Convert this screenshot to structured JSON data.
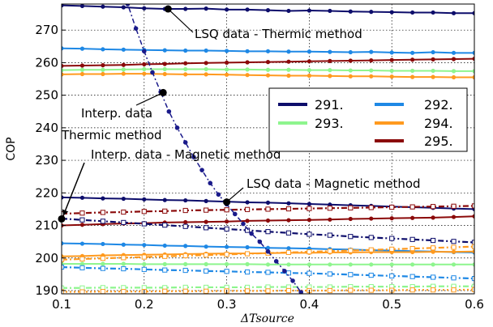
{
  "chart_data": {
    "type": "line",
    "title": "",
    "xlabel": "ΔTsource",
    "ylabel": "COP",
    "xlim": [
      0.1,
      0.6
    ],
    "ylim": [
      189,
      278
    ],
    "xticks": [
      "0.1",
      "0.2",
      "0.3",
      "0.4",
      "0.5",
      "0.6"
    ],
    "yticks": [
      "190",
      "200",
      "210",
      "220",
      "230",
      "240",
      "250",
      "260",
      "270"
    ],
    "grid": true,
    "legend": {
      "placement": "center-right",
      "columns": 2,
      "entries": [
        {
          "label": "291.",
          "color": "#0d0d6b"
        },
        {
          "label": "292.",
          "color": "#1e88e5"
        },
        {
          "label": "293.",
          "color": "#8ef58e"
        },
        {
          "label": "294.",
          "color": "#ff9a1f"
        },
        {
          "label": "295.",
          "color": "#8b0a0a"
        }
      ]
    },
    "colors": {
      "291": "#0d0d6b",
      "292": "#1e88e5",
      "293": "#8ef58e",
      "294": "#ff9a1f",
      "295": "#8b0a0a",
      "interp": "#1a1a8a"
    },
    "series": [
      {
        "temp": "291",
        "method": "thermic-lsq",
        "x": [
          0.1,
          0.125,
          0.15,
          0.175,
          0.2,
          0.225,
          0.25,
          0.275,
          0.3,
          0.325,
          0.35,
          0.375,
          0.4,
          0.425,
          0.45,
          0.475,
          0.5,
          0.525,
          0.55,
          0.575,
          0.6
        ],
        "y": [
          277.6,
          277.4,
          277.2,
          277.0,
          276.7,
          276.5,
          276.5,
          276.6,
          276.3,
          276.3,
          276.1,
          275.9,
          276.0,
          275.9,
          275.7,
          275.6,
          275.5,
          275.4,
          275.4,
          275.2,
          275.2
        ]
      },
      {
        "temp": "292",
        "method": "thermic-lsq",
        "x": [
          0.1,
          0.125,
          0.15,
          0.175,
          0.2,
          0.225,
          0.25,
          0.275,
          0.3,
          0.325,
          0.35,
          0.375,
          0.4,
          0.425,
          0.45,
          0.475,
          0.5,
          0.525,
          0.55,
          0.575,
          0.6
        ],
        "y": [
          264.4,
          264.3,
          264.1,
          264.0,
          263.9,
          263.8,
          263.7,
          263.7,
          263.6,
          263.5,
          263.5,
          263.4,
          263.4,
          263.3,
          263.2,
          263.3,
          263.1,
          263.0,
          263.2,
          263.0,
          263.0
        ]
      },
      {
        "temp": "295",
        "method": "thermic-lsq",
        "x": [
          0.1,
          0.125,
          0.15,
          0.175,
          0.2,
          0.225,
          0.25,
          0.275,
          0.3,
          0.325,
          0.35,
          0.375,
          0.4,
          0.425,
          0.45,
          0.475,
          0.5,
          0.525,
          0.55,
          0.575,
          0.6
        ],
        "y": [
          259.0,
          259.1,
          259.2,
          259.3,
          259.5,
          259.6,
          259.8,
          259.9,
          260.0,
          260.1,
          260.2,
          260.3,
          260.4,
          260.5,
          260.6,
          260.7,
          260.8,
          260.9,
          261.0,
          261.1,
          261.2
        ]
      },
      {
        "temp": "293",
        "method": "thermic-lsq",
        "x": [
          0.1,
          0.125,
          0.15,
          0.175,
          0.2,
          0.225,
          0.25,
          0.275,
          0.3,
          0.325,
          0.35,
          0.375,
          0.4,
          0.425,
          0.45,
          0.475,
          0.5,
          0.525,
          0.55,
          0.575,
          0.6
        ],
        "y": [
          257.7,
          257.8,
          257.8,
          257.9,
          258.0,
          258.0,
          258.0,
          258.0,
          257.9,
          257.9,
          257.8,
          257.8,
          257.7,
          257.7,
          257.6,
          257.6,
          257.5,
          257.5,
          257.5,
          257.4,
          257.4
        ]
      },
      {
        "temp": "294",
        "method": "thermic-lsq",
        "x": [
          0.1,
          0.125,
          0.15,
          0.175,
          0.2,
          0.225,
          0.25,
          0.275,
          0.3,
          0.325,
          0.35,
          0.375,
          0.4,
          0.425,
          0.45,
          0.475,
          0.5,
          0.525,
          0.55,
          0.575,
          0.6
        ],
        "y": [
          256.4,
          256.5,
          256.5,
          256.6,
          256.6,
          256.5,
          256.4,
          256.4,
          256.3,
          256.2,
          256.1,
          256.0,
          256.0,
          255.9,
          255.8,
          255.8,
          255.7,
          255.6,
          255.6,
          255.5,
          255.5
        ]
      },
      {
        "temp": "291",
        "method": "magnetic-lsq",
        "x": [
          0.1,
          0.125,
          0.15,
          0.175,
          0.2,
          0.225,
          0.25,
          0.275,
          0.3,
          0.325,
          0.35,
          0.375,
          0.4,
          0.425,
          0.45,
          0.475,
          0.5,
          0.525,
          0.55,
          0.575,
          0.6
        ],
        "y": [
          218.6,
          218.5,
          218.3,
          218.2,
          218.0,
          217.8,
          217.7,
          217.5,
          217.3,
          217.1,
          217.0,
          216.8,
          216.6,
          216.4,
          216.2,
          216.0,
          215.8,
          215.6,
          215.4,
          215.2,
          215.0
        ]
      },
      {
        "temp": "295",
        "method": "magnetic-lsq",
        "x": [
          0.1,
          0.125,
          0.15,
          0.175,
          0.2,
          0.225,
          0.25,
          0.275,
          0.3,
          0.325,
          0.35,
          0.375,
          0.4,
          0.425,
          0.45,
          0.475,
          0.5,
          0.525,
          0.55,
          0.575,
          0.6
        ],
        "y": [
          210.0,
          210.2,
          210.4,
          210.6,
          210.7,
          210.9,
          211.0,
          211.1,
          211.2,
          211.4,
          211.5,
          211.6,
          211.7,
          211.8,
          212.0,
          212.1,
          212.2,
          212.3,
          212.4,
          212.6,
          212.8
        ]
      },
      {
        "temp": "292",
        "method": "magnetic-lsq",
        "x": [
          0.1,
          0.125,
          0.15,
          0.175,
          0.2,
          0.225,
          0.25,
          0.275,
          0.3,
          0.325,
          0.35,
          0.375,
          0.4,
          0.425,
          0.45,
          0.475,
          0.5,
          0.525,
          0.55,
          0.575,
          0.6
        ],
        "y": [
          204.5,
          204.4,
          204.3,
          204.1,
          204.0,
          203.8,
          203.7,
          203.5,
          203.4,
          203.3,
          203.1,
          203.0,
          202.9,
          202.7,
          202.6,
          202.4,
          202.3,
          202.1,
          202.0,
          201.8,
          201.7
        ]
      },
      {
        "temp": "294",
        "method": "magnetic-lsq",
        "x": [
          0.1,
          0.125,
          0.15,
          0.175,
          0.2,
          0.225,
          0.25,
          0.275,
          0.3,
          0.325,
          0.35,
          0.375,
          0.4,
          0.425,
          0.45,
          0.475,
          0.5,
          0.525,
          0.55,
          0.575,
          0.6
        ],
        "y": [
          200.5,
          200.6,
          200.8,
          200.9,
          201.0,
          201.1,
          201.2,
          201.3,
          201.4,
          201.4,
          201.5,
          201.6,
          201.6,
          201.7,
          201.7,
          201.8,
          201.8,
          201.8,
          201.9,
          201.9,
          202.0
        ]
      },
      {
        "temp": "293",
        "method": "magnetic-lsq",
        "x": [
          0.1,
          0.125,
          0.15,
          0.175,
          0.2,
          0.225,
          0.25,
          0.275,
          0.3,
          0.325,
          0.35,
          0.375,
          0.4,
          0.425,
          0.45,
          0.475,
          0.5,
          0.525,
          0.55,
          0.575,
          0.6
        ],
        "y": [
          198.2,
          198.2,
          198.2,
          198.2,
          198.1,
          198.1,
          198.1,
          198.1,
          198.1,
          198.1,
          198.0,
          198.0,
          198.0,
          198.0,
          198.0,
          198.0,
          198.0,
          198.0,
          198.0,
          198.0,
          198.0
        ]
      },
      {
        "temp": "295",
        "method": "magnetic-interp",
        "x": [
          0.1,
          0.125,
          0.15,
          0.175,
          0.2,
          0.225,
          0.25,
          0.275,
          0.3,
          0.325,
          0.35,
          0.375,
          0.4,
          0.425,
          0.45,
          0.475,
          0.5,
          0.525,
          0.55,
          0.575,
          0.6
        ],
        "y": [
          213.6,
          213.8,
          214.0,
          214.1,
          214.3,
          214.4,
          214.6,
          214.7,
          214.8,
          214.9,
          215.0,
          215.1,
          215.2,
          215.3,
          215.4,
          215.5,
          215.6,
          215.7,
          215.8,
          215.9,
          216.0
        ]
      },
      {
        "temp": "291",
        "method": "magnetic-interp",
        "x": [
          0.1,
          0.125,
          0.15,
          0.175,
          0.2,
          0.225,
          0.25,
          0.275,
          0.3,
          0.325,
          0.35,
          0.375,
          0.4,
          0.425,
          0.45,
          0.475,
          0.5,
          0.525,
          0.55,
          0.575,
          0.6
        ],
        "y": [
          212.1,
          211.7,
          211.3,
          210.9,
          210.5,
          210.1,
          209.7,
          209.3,
          208.9,
          208.5,
          208.1,
          207.7,
          207.3,
          207.0,
          206.6,
          206.3,
          206.0,
          205.7,
          205.4,
          205.1,
          204.8
        ]
      },
      {
        "temp": "294",
        "method": "magnetic-interp",
        "x": [
          0.1,
          0.125,
          0.15,
          0.175,
          0.2,
          0.225,
          0.25,
          0.275,
          0.3,
          0.325,
          0.35,
          0.375,
          0.4,
          0.425,
          0.45,
          0.475,
          0.5,
          0.525,
          0.55,
          0.575,
          0.6
        ],
        "y": [
          199.5,
          199.7,
          199.9,
          200.1,
          200.3,
          200.5,
          200.7,
          200.9,
          201.1,
          201.3,
          201.5,
          201.7,
          201.9,
          202.1,
          202.3,
          202.5,
          202.7,
          202.9,
          203.1,
          203.3,
          203.5
        ]
      },
      {
        "temp": "292",
        "method": "magnetic-interp",
        "x": [
          0.1,
          0.125,
          0.15,
          0.175,
          0.2,
          0.225,
          0.25,
          0.275,
          0.3,
          0.325,
          0.35,
          0.375,
          0.4,
          0.425,
          0.45,
          0.475,
          0.5,
          0.525,
          0.55,
          0.575,
          0.6
        ],
        "y": [
          197.2,
          197.0,
          196.8,
          196.7,
          196.5,
          196.3,
          196.2,
          196.0,
          195.9,
          195.7,
          195.6,
          195.4,
          195.3,
          195.1,
          194.9,
          194.7,
          194.5,
          194.3,
          194.1,
          193.9,
          193.7
        ]
      },
      {
        "temp": "293",
        "method": "magnetic-interp",
        "x": [
          0.1,
          0.125,
          0.15,
          0.175,
          0.2,
          0.225,
          0.25,
          0.275,
          0.3,
          0.325,
          0.35,
          0.375,
          0.4,
          0.425,
          0.45,
          0.475,
          0.5,
          0.525,
          0.55,
          0.575,
          0.6
        ],
        "y": [
          190.8,
          190.8,
          190.9,
          190.9,
          190.9,
          190.9,
          191.0,
          191.0,
          191.0,
          191.0,
          191.1,
          191.1,
          191.1,
          191.1,
          191.2,
          191.2,
          191.2,
          191.2,
          191.3,
          191.3,
          191.3
        ]
      },
      {
        "temp": "294",
        "method": "magnetic-interp-lower",
        "x": [
          0.1,
          0.125,
          0.15,
          0.175,
          0.2,
          0.225,
          0.25,
          0.275,
          0.3,
          0.325,
          0.35,
          0.375,
          0.4,
          0.425,
          0.45,
          0.475,
          0.5,
          0.525,
          0.55,
          0.575,
          0.6
        ],
        "y": [
          189.6,
          189.6,
          189.7,
          189.7,
          189.7,
          189.8,
          189.8,
          189.8,
          189.9,
          189.9,
          189.9,
          190.0,
          190.0,
          190.0,
          190.1,
          190.1,
          190.1,
          190.2,
          190.2,
          190.2,
          190.3
        ]
      },
      {
        "temp": "291",
        "method": "thermic-interp",
        "x": [
          0.18,
          0.19,
          0.2,
          0.21,
          0.22,
          0.23,
          0.24,
          0.25,
          0.26,
          0.27,
          0.28,
          0.29,
          0.3,
          0.31,
          0.32,
          0.33,
          0.34,
          0.35,
          0.36,
          0.37,
          0.38,
          0.39
        ],
        "y": [
          278.0,
          270.5,
          263.5,
          257.0,
          251.0,
          245.0,
          240.0,
          235.5,
          231.0,
          227.0,
          223.0,
          219.5,
          216.5,
          213.5,
          210.5,
          207.5,
          205.0,
          202.0,
          199.0,
          196.0,
          193.0,
          189.5
        ]
      }
    ],
    "annotations": [
      {
        "text": "LSQ data - Thermic method",
        "point": [
          0.229,
          276.5
        ]
      },
      {
        "text": "Interp. data",
        "point": [
          0.223,
          250.8
        ]
      },
      {
        "text": "Thermic method",
        "point": [
          0.223,
          250.8
        ]
      },
      {
        "text": "Interp. data - Magnetic method",
        "point": [
          0.1,
          212.0
        ]
      },
      {
        "text": "LSQ data - Magnetic method",
        "point": [
          0.3,
          217.2
        ]
      }
    ]
  }
}
